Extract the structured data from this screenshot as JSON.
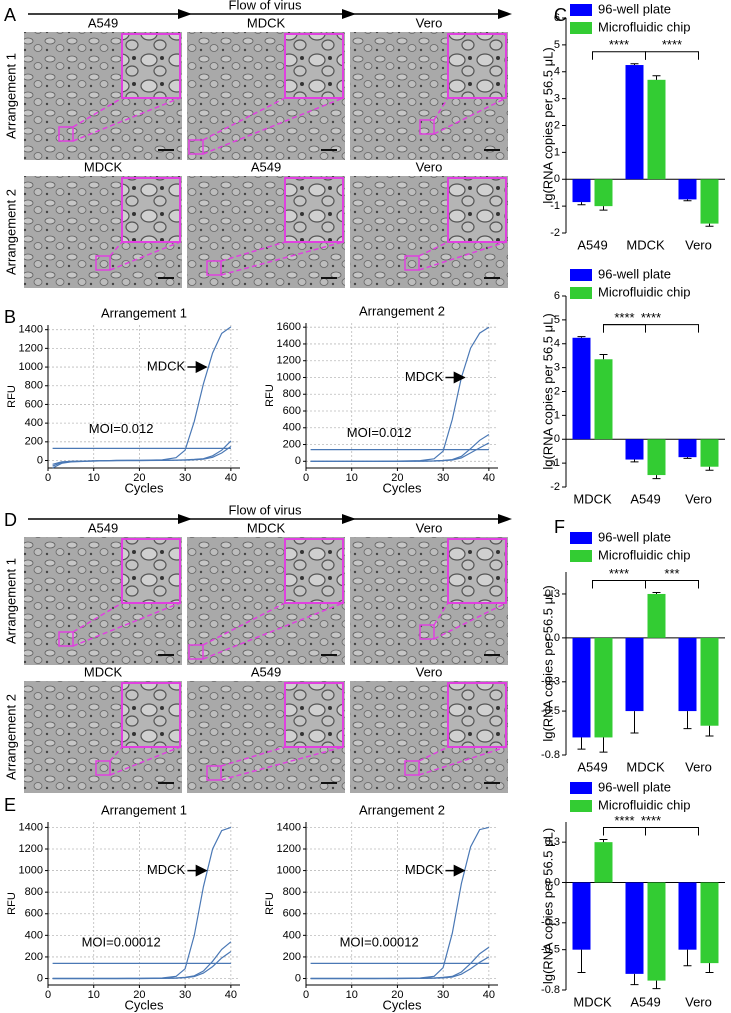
{
  "panel_labels": [
    "A",
    "B",
    "C",
    "D",
    "E",
    "F"
  ],
  "image_panels": [
    {
      "flow_label": "Flow of virus",
      "rows": [
        {
          "label": "Arrangement 1",
          "cells": [
            "A549",
            "MDCK",
            "Vero"
          ]
        },
        {
          "label": "Arrangement 2",
          "cells": [
            "MDCK",
            "A549",
            "Vero"
          ]
        }
      ]
    },
    {
      "flow_label": "Flow of virus",
      "rows": [
        {
          "label": "Arrangement 1",
          "cells": [
            "A549",
            "MDCK",
            "Vero"
          ]
        },
        {
          "label": "Arrangement 2",
          "cells": [
            "MDCK",
            "A549",
            "Vero"
          ]
        }
      ]
    }
  ],
  "chart_data": [
    {
      "type": "line",
      "title": "Arrangement 1",
      "x_label": "Cycles",
      "y_label": "RFU",
      "x": [
        1,
        3,
        5,
        10,
        15,
        20,
        25,
        28,
        30,
        32,
        34,
        36,
        38,
        40
      ],
      "xlim": [
        0,
        42
      ],
      "xticks": [
        0,
        10,
        20,
        30,
        40
      ],
      "ylim": [
        -80,
        1450
      ],
      "yticks": [
        0,
        200,
        400,
        600,
        800,
        1000,
        1200,
        1400
      ],
      "grid": true,
      "series": [
        {
          "color": "#4a78b5",
          "values": [
            -80,
            -30,
            -15,
            -5,
            0,
            2,
            8,
            30,
            110,
            420,
            820,
            1150,
            1360,
            1430
          ]
        },
        {
          "color": "#4a78b5",
          "values": [
            -60,
            -20,
            -10,
            -5,
            0,
            0,
            2,
            5,
            8,
            12,
            20,
            50,
            110,
            210
          ]
        },
        {
          "color": "#4a78b5",
          "values": [
            -40,
            -15,
            -8,
            -3,
            0,
            0,
            1,
            3,
            5,
            8,
            15,
            35,
            80,
            150
          ]
        },
        {
          "color": "#4a78b5",
          "values": [
            130,
            130,
            130,
            130,
            130,
            130,
            130,
            130,
            130,
            130,
            130,
            130,
            130,
            130
          ]
        }
      ],
      "annotations": [
        "MDCK",
        "MOI=0.012"
      ]
    },
    {
      "type": "line",
      "title": "Arrangement 2",
      "x_label": "Cycles",
      "y_label": "RFU",
      "x": [
        1,
        3,
        5,
        10,
        15,
        20,
        25,
        28,
        30,
        32,
        34,
        36,
        38,
        40
      ],
      "xlim": [
        0,
        42
      ],
      "xticks": [
        0,
        10,
        20,
        30,
        40
      ],
      "ylim": [
        -80,
        1650
      ],
      "yticks": [
        0,
        200,
        400,
        600,
        800,
        1000,
        1200,
        1400,
        1600
      ],
      "grid": true,
      "series": [
        {
          "color": "#4a78b5",
          "values": [
            0,
            0,
            0,
            0,
            0,
            2,
            8,
            30,
            120,
            500,
            1000,
            1350,
            1530,
            1600
          ]
        },
        {
          "color": "#4a78b5",
          "values": [
            0,
            0,
            0,
            0,
            0,
            0,
            2,
            5,
            10,
            20,
            60,
            150,
            250,
            320
          ]
        },
        {
          "color": "#4a78b5",
          "values": [
            0,
            0,
            0,
            0,
            0,
            0,
            1,
            3,
            8,
            15,
            40,
            100,
            160,
            220
          ]
        },
        {
          "color": "#4a78b5",
          "values": [
            140,
            140,
            140,
            140,
            140,
            140,
            140,
            140,
            140,
            140,
            140,
            140,
            140,
            140
          ]
        }
      ],
      "annotations": [
        "MDCK",
        "MOI=0.012"
      ]
    },
    {
      "type": "bar",
      "y_label": "lg(RNA copies per 56.5 μL)",
      "categories": [
        "A549",
        "MDCK",
        "Vero"
      ],
      "ylim": [
        -2,
        6
      ],
      "yticks": [
        -2,
        -1,
        0,
        1,
        2,
        3,
        4,
        5,
        6
      ],
      "series": [
        {
          "name": "96-well plate",
          "color": "#0000ff",
          "values": [
            -0.85,
            4.25,
            -0.75
          ],
          "errors": [
            0.1,
            0.05,
            0.05
          ]
        },
        {
          "name": "Microfluidic chip",
          "color": "#33cc33",
          "values": [
            -1.0,
            3.7,
            -1.65
          ],
          "errors": [
            0.15,
            0.15,
            0.1
          ]
        }
      ],
      "significance": [
        "****",
        "****"
      ]
    },
    {
      "type": "bar",
      "y_label": "lg(RNA copies per 56.5 μL)",
      "categories": [
        "MDCK",
        "A549",
        "Vero"
      ],
      "ylim": [
        -2,
        6
      ],
      "yticks": [
        -2,
        -1,
        0,
        1,
        2,
        3,
        4,
        5,
        6
      ],
      "series": [
        {
          "name": "96-well plate",
          "color": "#0000ff",
          "values": [
            4.25,
            -0.85,
            -0.75
          ],
          "errors": [
            0.05,
            0.1,
            0.05
          ]
        },
        {
          "name": "Microfluidic chip",
          "color": "#33cc33",
          "values": [
            3.35,
            -1.5,
            -1.15
          ],
          "errors": [
            0.2,
            0.15,
            0.15
          ]
        }
      ],
      "significance": [
        "****",
        "****"
      ]
    },
    {
      "type": "line",
      "title": "Arrangement 1",
      "x_label": "Cycles",
      "y_label": "RFU",
      "x": [
        1,
        3,
        5,
        10,
        15,
        20,
        25,
        28,
        30,
        32,
        34,
        36,
        38,
        40
      ],
      "xlim": [
        0,
        42
      ],
      "xticks": [
        0,
        10,
        20,
        30,
        40
      ],
      "ylim": [
        -60,
        1450
      ],
      "yticks": [
        0,
        200,
        400,
        600,
        800,
        1000,
        1200,
        1400
      ],
      "grid": true,
      "series": [
        {
          "color": "#4a78b5",
          "values": [
            0,
            0,
            0,
            0,
            0,
            2,
            5,
            20,
            90,
            400,
            850,
            1200,
            1370,
            1400
          ]
        },
        {
          "color": "#4a78b5",
          "values": [
            0,
            0,
            0,
            0,
            0,
            0,
            2,
            5,
            10,
            25,
            70,
            160,
            270,
            340
          ]
        },
        {
          "color": "#4a78b5",
          "values": [
            0,
            0,
            0,
            0,
            0,
            0,
            1,
            3,
            8,
            18,
            50,
            110,
            190,
            250
          ]
        },
        {
          "color": "#4a78b5",
          "values": [
            140,
            140,
            140,
            140,
            140,
            140,
            140,
            140,
            140,
            140,
            140,
            140,
            140,
            140
          ]
        }
      ],
      "annotations": [
        "MDCK",
        "MOI=0.00012"
      ]
    },
    {
      "type": "line",
      "title": "Arrangement 2",
      "x_label": "Cycles",
      "y_label": "RFU",
      "x": [
        1,
        3,
        5,
        10,
        15,
        20,
        25,
        28,
        30,
        32,
        34,
        36,
        38,
        40
      ],
      "xlim": [
        0,
        42
      ],
      "xticks": [
        0,
        10,
        20,
        30,
        40
      ],
      "ylim": [
        -60,
        1450
      ],
      "yticks": [
        0,
        200,
        400,
        600,
        800,
        1000,
        1200,
        1400
      ],
      "grid": true,
      "series": [
        {
          "color": "#4a78b5",
          "values": [
            0,
            0,
            0,
            0,
            0,
            2,
            5,
            20,
            100,
            420,
            880,
            1220,
            1380,
            1400
          ]
        },
        {
          "color": "#4a78b5",
          "values": [
            0,
            0,
            0,
            0,
            0,
            0,
            2,
            5,
            10,
            20,
            60,
            140,
            230,
            290
          ]
        },
        {
          "color": "#4a78b5",
          "values": [
            0,
            0,
            0,
            0,
            0,
            0,
            1,
            3,
            6,
            14,
            40,
            90,
            150,
            200
          ]
        },
        {
          "color": "#4a78b5",
          "values": [
            140,
            140,
            140,
            140,
            140,
            140,
            140,
            140,
            140,
            140,
            140,
            140,
            140,
            140
          ]
        }
      ],
      "annotations": [
        "MDCK",
        "MOI=0.00012"
      ]
    },
    {
      "type": "bar",
      "y_label": "lg(RNA copies per 56.5 μL)",
      "categories": [
        "A549",
        "MDCK",
        "Vero"
      ],
      "ylim": [
        -0.8,
        0.45
      ],
      "yticks": [
        0.3,
        {
          "value": 0,
          "label": "0.0"
        },
        -0.3,
        -0.5,
        -0.8
      ],
      "series": [
        {
          "name": "96-well plate",
          "color": "#0000ff",
          "values": [
            -0.68,
            -0.5,
            -0.5
          ],
          "errors": [
            0.08,
            0.15,
            0.12
          ]
        },
        {
          "name": "Microfluidic chip",
          "color": "#33cc33",
          "values": [
            -0.68,
            0.3,
            -0.6
          ],
          "errors": [
            0.1,
            0.01,
            0.07
          ]
        }
      ],
      "significance": [
        "****",
        "***"
      ]
    },
    {
      "type": "bar",
      "y_label": "lg(RNA copies per 56.5 μL)",
      "categories": [
        "MDCK",
        "A549",
        "Vero"
      ],
      "ylim": [
        -0.8,
        0.45
      ],
      "yticks": [
        0.3,
        {
          "value": 0,
          "label": "0.0"
        },
        -0.3,
        -0.5,
        -0.8
      ],
      "series": [
        {
          "name": "96-well plate",
          "color": "#0000ff",
          "values": [
            -0.5,
            -0.68,
            -0.5
          ],
          "errors": [
            0.17,
            0.08,
            0.12
          ]
        },
        {
          "name": "Microfluidic chip",
          "color": "#33cc33",
          "values": [
            0.3,
            -0.73,
            -0.6
          ],
          "errors": [
            0.02,
            0.06,
            0.07
          ]
        }
      ],
      "significance": [
        "****",
        "****"
      ]
    }
  ]
}
